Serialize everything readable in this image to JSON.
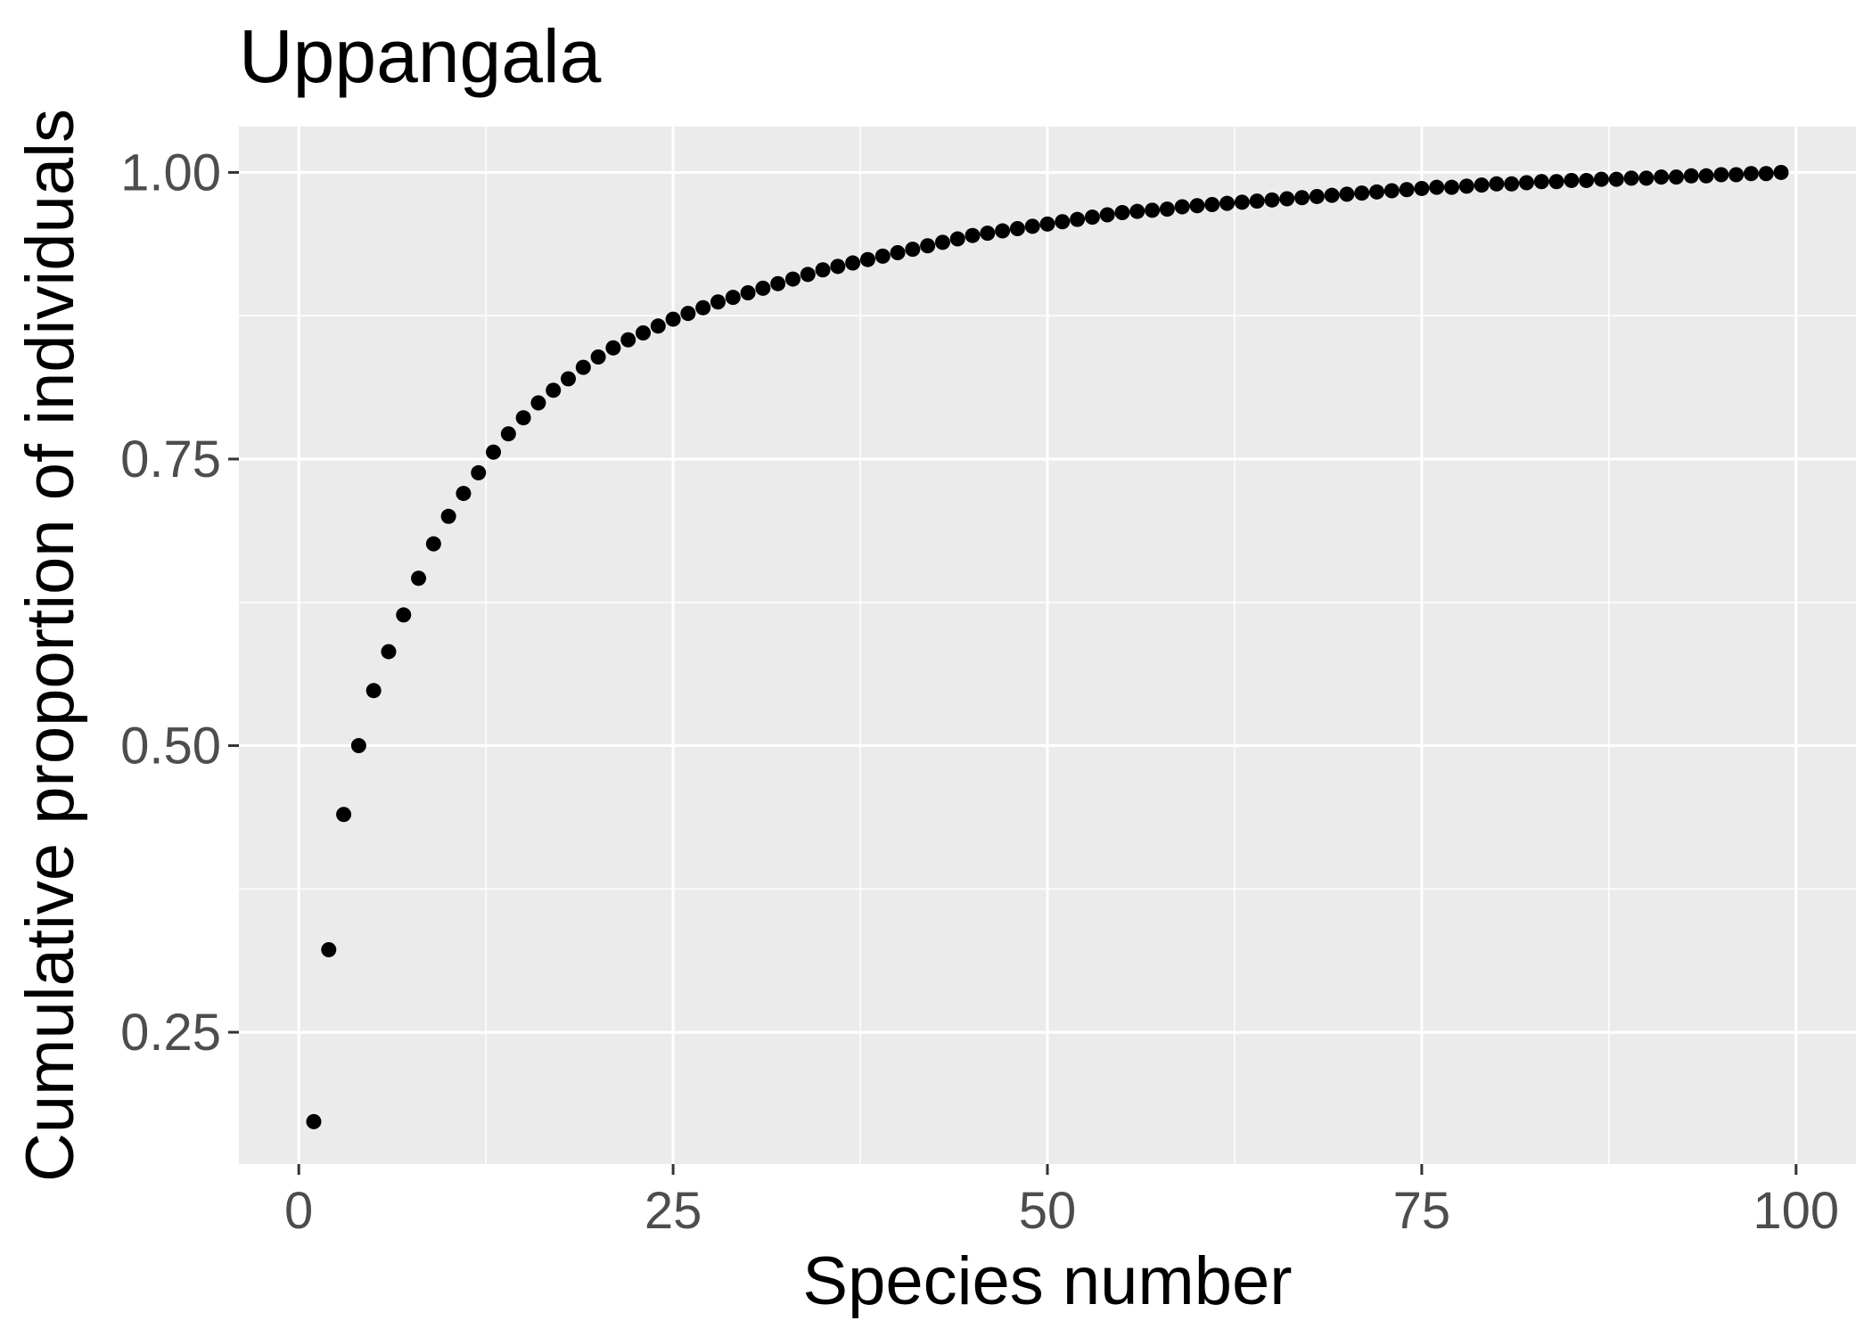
{
  "chart_data": {
    "type": "scatter",
    "title": "Uppangala",
    "xlabel": "Species number",
    "ylabel": "Cumulative proportion of individuals",
    "xlim": [
      -4,
      104
    ],
    "ylim": [
      0.135,
      1.04
    ],
    "x_ticks": [
      0,
      25,
      50,
      75,
      100
    ],
    "x_tick_labels": [
      "0",
      "25",
      "50",
      "75",
      "100"
    ],
    "y_ticks": [
      0.25,
      0.5,
      0.75,
      1.0
    ],
    "y_tick_labels": [
      "0.25",
      "0.50",
      "0.75",
      "1.00"
    ],
    "grid": true,
    "legend": "none",
    "colors": {
      "panel": "#ebebeb",
      "grid": "#ffffff",
      "point": "#000000",
      "tick_text": "#4d4d4d"
    },
    "x": [
      1,
      2,
      3,
      4,
      5,
      6,
      7,
      8,
      9,
      10,
      11,
      12,
      13,
      14,
      15,
      16,
      17,
      18,
      19,
      20,
      21,
      22,
      23,
      24,
      25,
      26,
      27,
      28,
      29,
      30,
      31,
      32,
      33,
      34,
      35,
      36,
      37,
      38,
      39,
      40,
      41,
      42,
      43,
      44,
      45,
      46,
      47,
      48,
      49,
      50,
      51,
      52,
      53,
      54,
      55,
      56,
      57,
      58,
      59,
      60,
      61,
      62,
      63,
      64,
      65,
      66,
      67,
      68,
      69,
      70,
      71,
      72,
      73,
      74,
      75,
      76,
      77,
      78,
      79,
      80,
      81,
      82,
      83,
      84,
      85,
      86,
      87,
      88,
      89,
      90,
      91,
      92,
      93,
      94,
      95,
      96,
      97,
      98,
      99
    ],
    "y": [
      0.172,
      0.322,
      0.44,
      0.5,
      0.548,
      0.582,
      0.614,
      0.646,
      0.676,
      0.7,
      0.72,
      0.738,
      0.756,
      0.772,
      0.786,
      0.799,
      0.81,
      0.82,
      0.83,
      0.839,
      0.847,
      0.854,
      0.86,
      0.866,
      0.872,
      0.877,
      0.882,
      0.887,
      0.891,
      0.895,
      0.899,
      0.903,
      0.907,
      0.911,
      0.915,
      0.918,
      0.921,
      0.924,
      0.927,
      0.93,
      0.933,
      0.936,
      0.939,
      0.942,
      0.945,
      0.947,
      0.949,
      0.951,
      0.953,
      0.955,
      0.957,
      0.959,
      0.961,
      0.963,
      0.965,
      0.966,
      0.967,
      0.968,
      0.97,
      0.971,
      0.972,
      0.973,
      0.974,
      0.975,
      0.976,
      0.977,
      0.978,
      0.979,
      0.98,
      0.981,
      0.982,
      0.983,
      0.984,
      0.985,
      0.986,
      0.987,
      0.987,
      0.988,
      0.989,
      0.99,
      0.99,
      0.991,
      0.992,
      0.992,
      0.993,
      0.993,
      0.994,
      0.994,
      0.995,
      0.995,
      0.996,
      0.996,
      0.997,
      0.997,
      0.998,
      0.998,
      0.999,
      0.999,
      1.0
    ]
  }
}
